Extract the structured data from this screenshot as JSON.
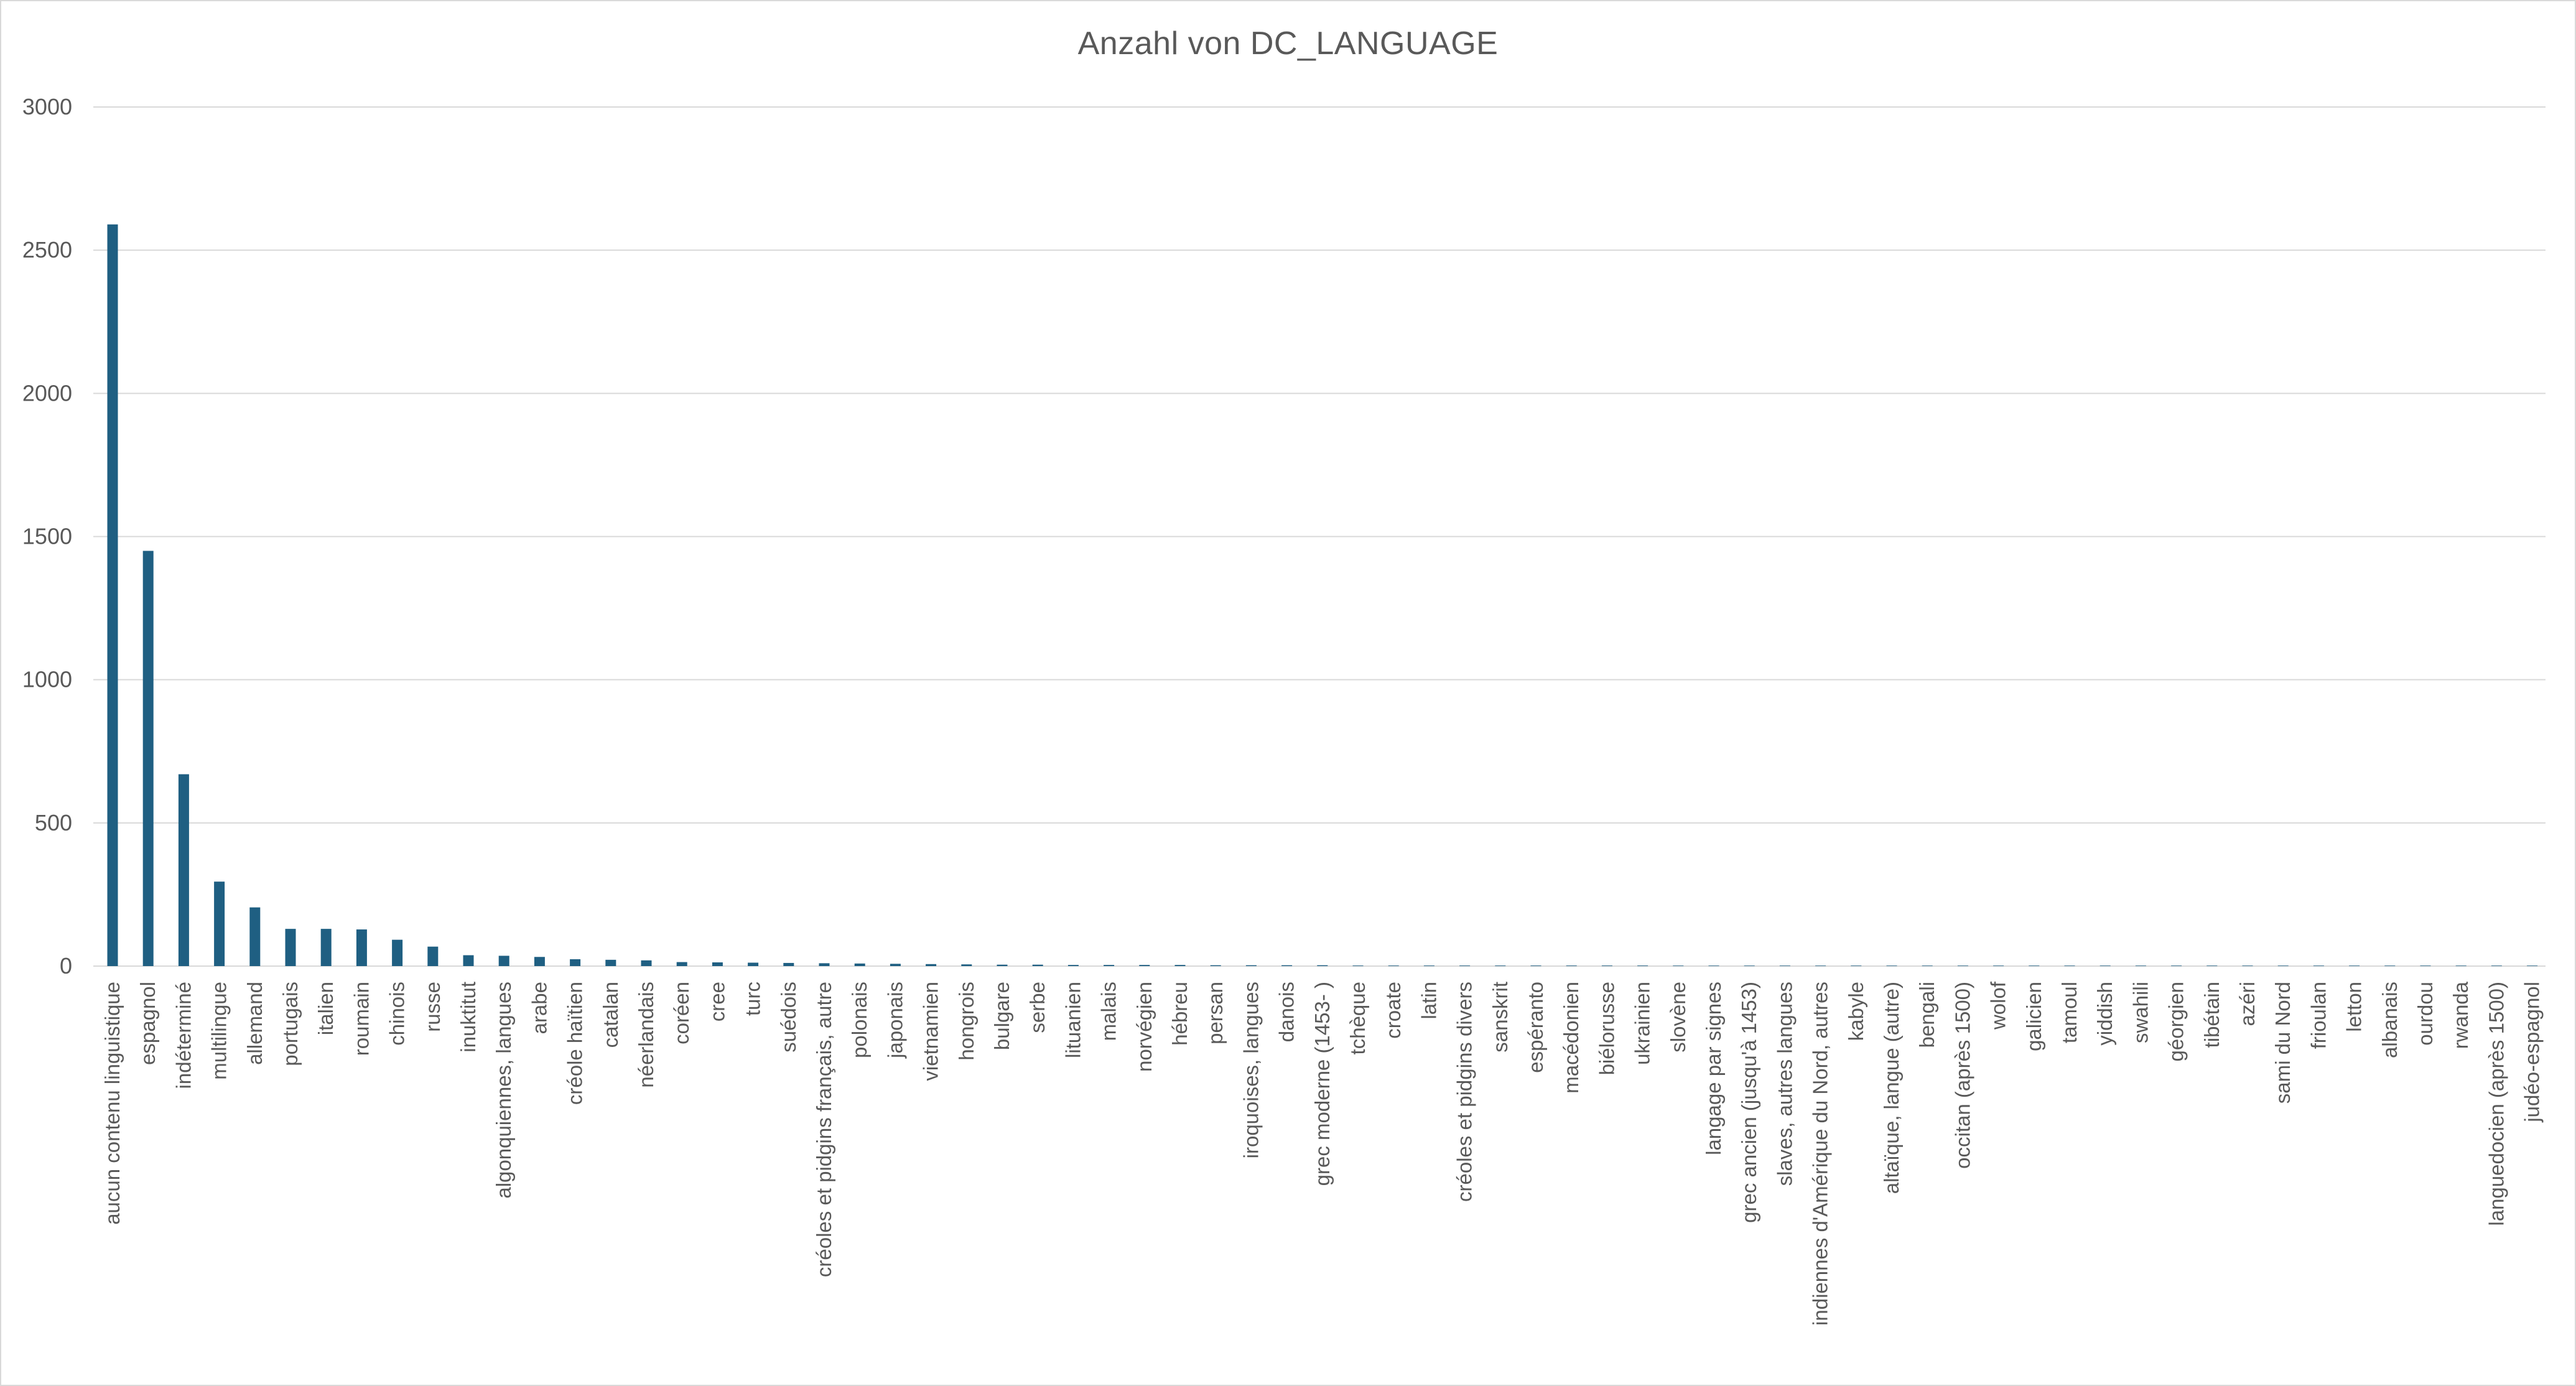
{
  "chart_data": {
    "type": "bar",
    "title": "Anzahl von DC_LANGUAGE",
    "xlabel": "",
    "ylabel": "",
    "ylim": [
      0,
      3000
    ],
    "yticks": [
      "0",
      "500",
      "1000",
      "1500",
      "2000",
      "2500",
      "3000"
    ],
    "grid": true,
    "legend": "none",
    "bar_color": "#1f5f82",
    "categories": [
      "aucun contenu linguistique",
      "espagnol",
      "indéterminé",
      "multilingue",
      "allemand",
      "portugais",
      "italien",
      "roumain",
      "chinois",
      "russe",
      "inuktitut",
      "algonquiennes, langues",
      "arabe",
      "créole haïtien",
      "catalan",
      "néerlandais",
      "coréen",
      "cree",
      "turc",
      "suédois",
      "créoles et pidgins français, autre",
      "polonais",
      "japonais",
      "vietnamien",
      "hongrois",
      "bulgare",
      "serbe",
      "lituanien",
      "malais",
      "norvégien",
      "hébreu",
      "persan",
      "iroquoises, langues",
      "danois",
      "grec moderne (1453- )",
      "tchèque",
      "croate",
      "latin",
      "créoles et pidgins divers",
      "sanskrit",
      "espéranto",
      "macédonien",
      "biélorusse",
      "ukrainien",
      "slovène",
      "langage par signes",
      "grec ancien (jusqu'à 1453)",
      "slaves, autres langues",
      "indiennes d'Amérique du Nord, autres",
      "kabyle",
      "altaïque, langue (autre)",
      "bengali",
      "occitan (après 1500)",
      "wolof",
      "galicien",
      "tamoul",
      "yiddish",
      "swahili",
      "géorgien",
      "tibétain",
      "azéri",
      "sami du Nord",
      "frioulan",
      "letton",
      "albanais",
      "ourdou",
      "rwanda",
      "languedocien (après 1500)",
      "judéo-espagnol"
    ],
    "values": [
      2590,
      1450,
      670,
      295,
      205,
      130,
      130,
      128,
      92,
      68,
      38,
      36,
      32,
      24,
      22,
      20,
      14,
      13,
      12,
      11,
      10,
      9,
      8,
      7,
      6,
      5,
      5,
      4,
      4,
      4,
      4,
      3,
      3,
      3,
      3,
      2,
      2,
      2,
      2,
      2,
      2,
      2,
      2,
      2,
      1,
      1,
      1,
      1,
      1,
      1,
      1,
      1,
      1,
      1,
      1,
      1,
      1,
      1,
      1,
      1,
      1,
      1,
      1,
      1,
      1,
      1,
      1,
      1,
      1
    ]
  }
}
